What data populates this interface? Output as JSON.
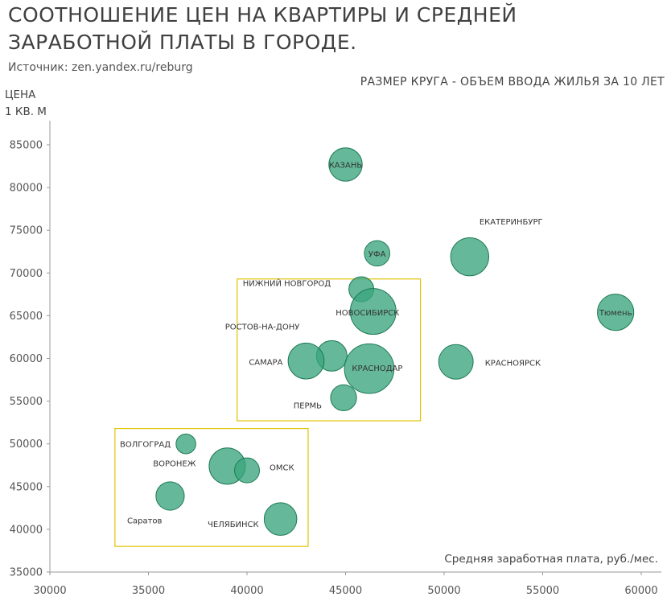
{
  "header": {
    "title": "СООТНОШЕНИЕ ЦЕН НА КВАРТИРЫ И СРЕДНЕЙ ЗАРАБОТНОЙ ПЛАТЫ В ГОРОДЕ.",
    "source": "Источник: zen.yandex.ru/reburg",
    "size_note": "РАЗМЕР КРУГА - ОБЪЕМ ВВОДА ЖИЛЬЯ ЗА 10 ЛЕТ",
    "ylabel_line1": "ЦЕНА",
    "ylabel_line2": "1 КВ. М"
  },
  "colors": {
    "bubble_fill": "#3aa57e",
    "bubble_stroke": "#1e7a55",
    "box_stroke": "#e0c200",
    "axis": "#999999"
  },
  "chart_data": {
    "type": "bubble",
    "title": "СООТНОШЕНИЕ ЦЕН НА КВАРТИРЫ И СРЕДНЕЙ ЗАРАБОТНОЙ ПЛАТЫ В ГОРОДЕ.",
    "xlabel": "Средняя заработная плата, руб./мес.",
    "ylabel": "ЦЕНА 1 КВ. М",
    "size_meaning": "РАЗМЕР КРУГА - ОБЪЕМ ВВОДА ЖИЛЬЯ ЗА 10 ЛЕТ",
    "xlim": [
      30000,
      61000
    ],
    "ylim": [
      35000,
      88000
    ],
    "xticks": [
      30000,
      35000,
      40000,
      45000,
      50000,
      55000,
      60000
    ],
    "yticks": [
      35000,
      40000,
      45000,
      50000,
      55000,
      60000,
      65000,
      70000,
      75000,
      80000,
      85000
    ],
    "points": [
      {
        "name": "КАЗАНЬ",
        "x": 45000,
        "y": 82700,
        "size": 4.3
      },
      {
        "name": "ЕКАТЕРИНБУРГ",
        "x": 51300,
        "y": 71900,
        "size": 5.6
      },
      {
        "name": "УФА",
        "x": 46600,
        "y": 72300,
        "size": 2.5
      },
      {
        "name": "Тюмень",
        "x": 58700,
        "y": 65400,
        "size": 5.1
      },
      {
        "name": "НИЖНИЙ НОВГОРОД",
        "x": 45800,
        "y": 68100,
        "size": 2.4
      },
      {
        "name": "НОВОСИБИРСК",
        "x": 46400,
        "y": 65500,
        "size": 8.1
      },
      {
        "name": "РОСТОВ-НА-ДОНУ",
        "x": 44300,
        "y": 60300,
        "size": 3.6
      },
      {
        "name": "САМАРА",
        "x": 43000,
        "y": 59700,
        "size": 5.0
      },
      {
        "name": "КРАСНОДАР",
        "x": 46200,
        "y": 58800,
        "size": 9.5
      },
      {
        "name": "КРАСНОЯРСК",
        "x": 50600,
        "y": 59600,
        "size": 4.6
      },
      {
        "name": "ПЕРМЬ",
        "x": 44900,
        "y": 55400,
        "size": 2.6
      },
      {
        "name": "ВОЛГОГРАД",
        "x": 36900,
        "y": 50000,
        "size": 1.5
      },
      {
        "name": "ВОРОНЕЖ",
        "x": 39000,
        "y": 47400,
        "size": 5.1
      },
      {
        "name": "ОМСК",
        "x": 40000,
        "y": 46900,
        "size": 2.4
      },
      {
        "name": "Саратов",
        "x": 36100,
        "y": 43900,
        "size": 3.1
      },
      {
        "name": "ЧЕЛЯБИНСК",
        "x": 41700,
        "y": 41200,
        "size": 4.1
      }
    ],
    "groups": [
      {
        "name": "upper-group",
        "x_range": [
          39500,
          48800
        ],
        "y_range": [
          52700,
          69300
        ]
      },
      {
        "name": "lower-group",
        "x_range": [
          33300,
          43100
        ],
        "y_range": [
          38000,
          51800
        ]
      }
    ]
  }
}
